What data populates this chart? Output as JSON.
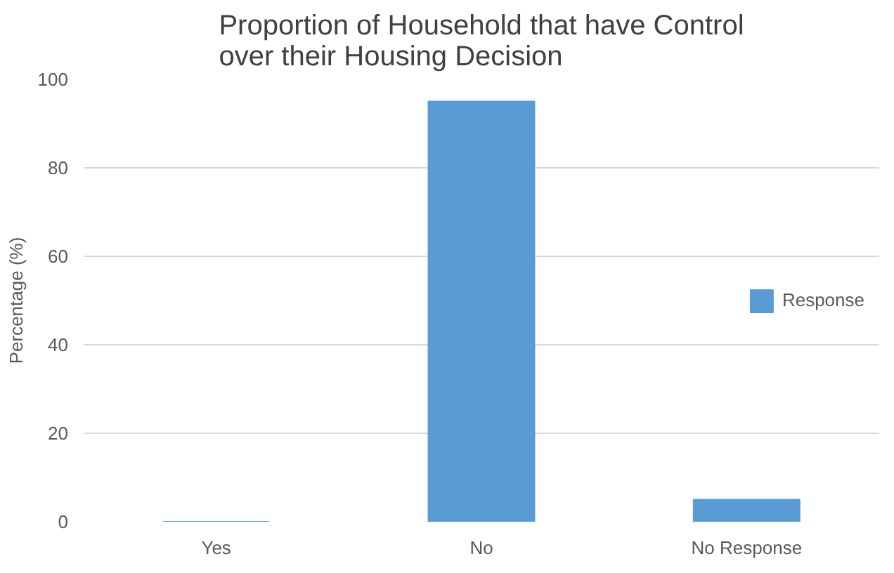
{
  "chart_data": {
    "type": "bar",
    "title": "Proportion of Household that have Control over their Housing Decision",
    "ylabel": "Percentage (%)",
    "categories": [
      "Yes",
      "No",
      "No Response"
    ],
    "series": [
      {
        "name": "Response",
        "color": "#5b9bd5",
        "values": [
          0,
          95,
          5
        ]
      }
    ],
    "ylim": [
      0,
      100
    ],
    "yticks": [
      0,
      20,
      40,
      60,
      80,
      100
    ],
    "grid": "y",
    "legend": "right"
  }
}
